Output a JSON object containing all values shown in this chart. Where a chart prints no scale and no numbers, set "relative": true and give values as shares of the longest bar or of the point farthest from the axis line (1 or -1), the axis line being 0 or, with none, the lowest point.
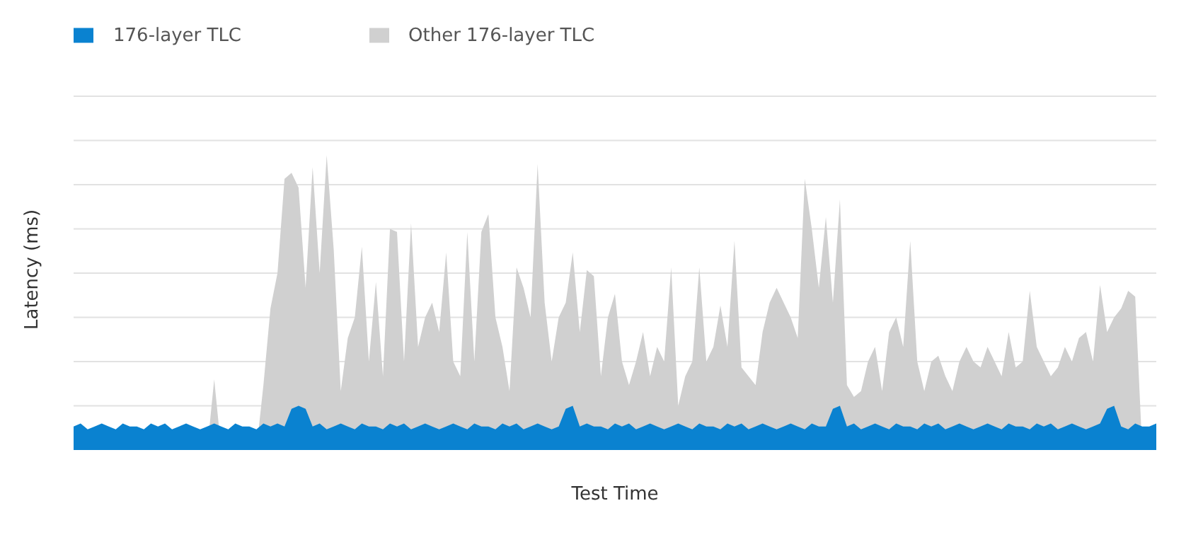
{
  "chart_data": {
    "type": "area",
    "relative": true,
    "xlabel": "Test Time",
    "ylabel": "Latency (ms)",
    "grid": "y",
    "legend": "top left",
    "categories": [
      null,
      null,
      null,
      null,
      null,
      null,
      null,
      null,
      null,
      null,
      null,
      null,
      null,
      null,
      null,
      null,
      null,
      null,
      null,
      null,
      null,
      null,
      null,
      null,
      null,
      null,
      null,
      null,
      null,
      null,
      null,
      null,
      null,
      null,
      null,
      null,
      null,
      null,
      null,
      null,
      null,
      null,
      null,
      null,
      null,
      null,
      null,
      null,
      null,
      null,
      null,
      null,
      null,
      null,
      null,
      null,
      null,
      null,
      null,
      null,
      null,
      null,
      null,
      null,
      null,
      null,
      null,
      null,
      null,
      null,
      null,
      null,
      null,
      null,
      null,
      null,
      null,
      null,
      null,
      null,
      null,
      null,
      null,
      null,
      null,
      null,
      null,
      null,
      null,
      null,
      null,
      null,
      null,
      null,
      null,
      null,
      null,
      null,
      null,
      null,
      null,
      null,
      null,
      null,
      null,
      null,
      null,
      null,
      null,
      null,
      null,
      null,
      null,
      null,
      null,
      null,
      null,
      null,
      null,
      null,
      null,
      null,
      null,
      null,
      null,
      null,
      null,
      null,
      null,
      null,
      null,
      null,
      null,
      null,
      null,
      null,
      null,
      null,
      null,
      null,
      null,
      null,
      null,
      null,
      null,
      null,
      null,
      null,
      null,
      null,
      null,
      null,
      null,
      null,
      null
    ],
    "series": [
      {
        "name": "Other 176-layer TLC",
        "color": "#d0d0d0",
        "values": [
          0,
          0,
          0,
          0,
          0,
          0,
          0,
          0,
          0,
          0,
          0,
          0,
          0,
          0,
          0,
          0,
          0,
          0,
          0,
          0,
          0.24,
          0,
          0,
          0,
          0,
          0,
          0,
          0.22,
          0.48,
          0.6,
          0.92,
          0.94,
          0.89,
          0.55,
          0.96,
          0.6,
          1.0,
          0.68,
          0.2,
          0.38,
          0.45,
          0.69,
          0.3,
          0.57,
          0.25,
          0.75,
          0.74,
          0.3,
          0.77,
          0.35,
          0.45,
          0.5,
          0.4,
          0.67,
          0.3,
          0.25,
          0.74,
          0.3,
          0.74,
          0.8,
          0.45,
          0.35,
          0.2,
          0.62,
          0.55,
          0.45,
          0.97,
          0.5,
          0.3,
          0.45,
          0.5,
          0.67,
          0.4,
          0.61,
          0.59,
          0.25,
          0.45,
          0.53,
          0.3,
          0.22,
          0.3,
          0.4,
          0.25,
          0.35,
          0.3,
          0.62,
          0.15,
          0.25,
          0.3,
          0.62,
          0.3,
          0.35,
          0.49,
          0.35,
          0.71,
          0.28,
          0.25,
          0.22,
          0.4,
          0.5,
          0.55,
          0.5,
          0.45,
          0.38,
          0.92,
          0.75,
          0.55,
          0.79,
          0.5,
          0.85,
          0.22,
          0.18,
          0.2,
          0.3,
          0.35,
          0.2,
          0.4,
          0.45,
          0.35,
          0.71,
          0.3,
          0.2,
          0.3,
          0.32,
          0.25,
          0.2,
          0.3,
          0.35,
          0.3,
          0.28,
          0.35,
          0.3,
          0.25,
          0.4,
          0.28,
          0.3,
          0.54,
          0.35,
          0.3,
          0.25,
          0.28,
          0.35,
          0.3,
          0.38,
          0.4,
          0.3,
          0.56,
          0.4,
          0.45,
          0.48,
          0.54,
          0.52,
          0,
          0,
          0
        ]
      },
      {
        "name": "176-layer TLC",
        "color": "#0a82d0",
        "values": [
          0.08,
          0.09,
          0.07,
          0.08,
          0.09,
          0.08,
          0.07,
          0.09,
          0.08,
          0.08,
          0.07,
          0.09,
          0.08,
          0.09,
          0.07,
          0.08,
          0.09,
          0.08,
          0.07,
          0.08,
          0.09,
          0.08,
          0.07,
          0.09,
          0.08,
          0.08,
          0.07,
          0.09,
          0.08,
          0.09,
          0.08,
          0.14,
          0.15,
          0.14,
          0.08,
          0.09,
          0.07,
          0.08,
          0.09,
          0.08,
          0.07,
          0.09,
          0.08,
          0.08,
          0.07,
          0.09,
          0.08,
          0.09,
          0.07,
          0.08,
          0.09,
          0.08,
          0.07,
          0.08,
          0.09,
          0.08,
          0.07,
          0.09,
          0.08,
          0.08,
          0.07,
          0.09,
          0.08,
          0.09,
          0.07,
          0.08,
          0.09,
          0.08,
          0.07,
          0.08,
          0.14,
          0.15,
          0.08,
          0.09,
          0.08,
          0.08,
          0.07,
          0.09,
          0.08,
          0.09,
          0.07,
          0.08,
          0.09,
          0.08,
          0.07,
          0.08,
          0.09,
          0.08,
          0.07,
          0.09,
          0.08,
          0.08,
          0.07,
          0.09,
          0.08,
          0.09,
          0.07,
          0.08,
          0.09,
          0.08,
          0.07,
          0.08,
          0.09,
          0.08,
          0.07,
          0.09,
          0.08,
          0.08,
          0.14,
          0.15,
          0.08,
          0.09,
          0.07,
          0.08,
          0.09,
          0.08,
          0.07,
          0.09,
          0.08,
          0.08,
          0.07,
          0.09,
          0.08,
          0.09,
          0.07,
          0.08,
          0.09,
          0.08,
          0.07,
          0.08,
          0.09,
          0.08,
          0.07,
          0.09,
          0.08,
          0.08,
          0.07,
          0.09,
          0.08,
          0.09,
          0.07,
          0.08,
          0.09,
          0.08,
          0.07,
          0.08,
          0.09,
          0.14,
          0.15,
          0.08,
          0.07,
          0.09,
          0.08,
          0.08,
          0.09
        ]
      }
    ]
  }
}
